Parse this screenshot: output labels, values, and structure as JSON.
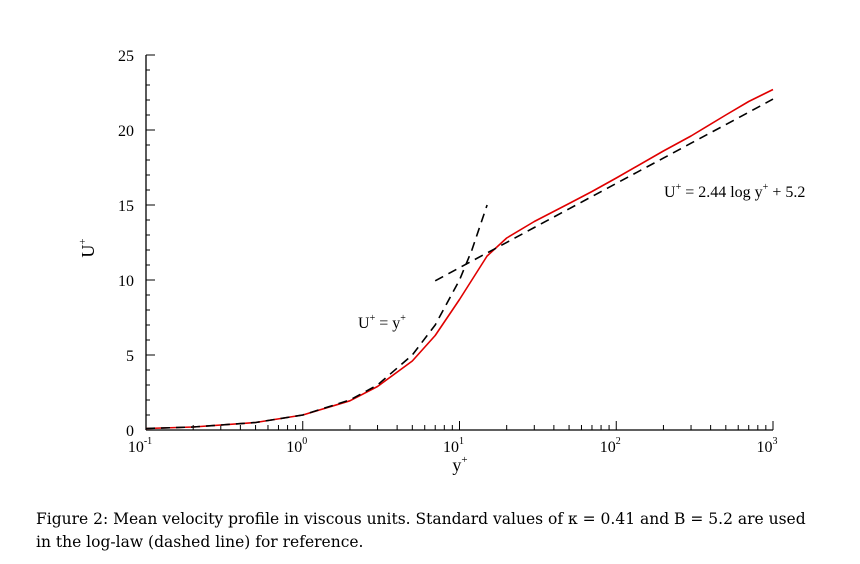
{
  "chart_data": {
    "type": "line",
    "title": "",
    "xlabel": "y",
    "xlabel_sup": "+",
    "ylabel": "U",
    "ylabel_sup": "+",
    "x_scale": "log",
    "xlim": [
      0.1,
      1000
    ],
    "ylim": [
      0,
      25
    ],
    "y_ticks": [
      "0",
      "5",
      "10",
      "15",
      "20",
      "25"
    ],
    "x_ticks": [
      {
        "base": "10",
        "exp": "-1"
      },
      {
        "base": "10",
        "exp": "0"
      },
      {
        "base": "10",
        "exp": "1"
      },
      {
        "base": "10",
        "exp": "2"
      },
      {
        "base": "10",
        "exp": "3"
      }
    ],
    "series": [
      {
        "style": "solid",
        "color": "#e00000",
        "x": [
          0.1,
          0.2,
          0.5,
          1,
          2,
          3,
          5,
          7,
          10,
          15,
          20,
          30,
          50,
          70,
          100,
          200,
          300,
          500,
          700,
          1000
        ],
        "y": [
          0.1,
          0.2,
          0.5,
          1.0,
          1.95,
          2.9,
          4.6,
          6.3,
          8.7,
          11.6,
          12.8,
          13.9,
          15.1,
          15.9,
          16.8,
          18.6,
          19.6,
          21.0,
          21.9,
          22.7
        ]
      },
      {
        "style": "dashed",
        "color": "#000000",
        "x": [
          0.1,
          0.2,
          0.5,
          1,
          2,
          3,
          5,
          7,
          10,
          12,
          15
        ],
        "y": [
          0.1,
          0.2,
          0.5,
          1,
          2,
          3,
          5,
          7,
          10,
          12,
          15
        ]
      },
      {
        "style": "dashed",
        "color": "#000000",
        "x": [
          7,
          10,
          20,
          30,
          50,
          100,
          200,
          300,
          500,
          1000
        ],
        "y": [
          9.95,
          10.82,
          12.51,
          13.5,
          14.75,
          16.44,
          18.13,
          19.12,
          20.36,
          22.06
        ]
      }
    ],
    "annotations": [
      {
        "name": "viscous-sublayer-label",
        "text_main": "U",
        "sup1": "+",
        "mid": " = y",
        "sup2": "+",
        "x": 2.2,
        "y": 6.2
      },
      {
        "name": "log-law-label",
        "text_main": "U",
        "sup1": "+",
        "mid": " = 2.44 log y",
        "sup2": "+",
        "tail": " + 5.2",
        "x": 100,
        "y": 16.2
      }
    ]
  },
  "caption": {
    "line1": "Figure 2: Mean velocity profile in viscous units. Standard values of κ = 0.41 and B = 5.2 are used",
    "line2": "in the log-law (dashed line) for reference."
  }
}
